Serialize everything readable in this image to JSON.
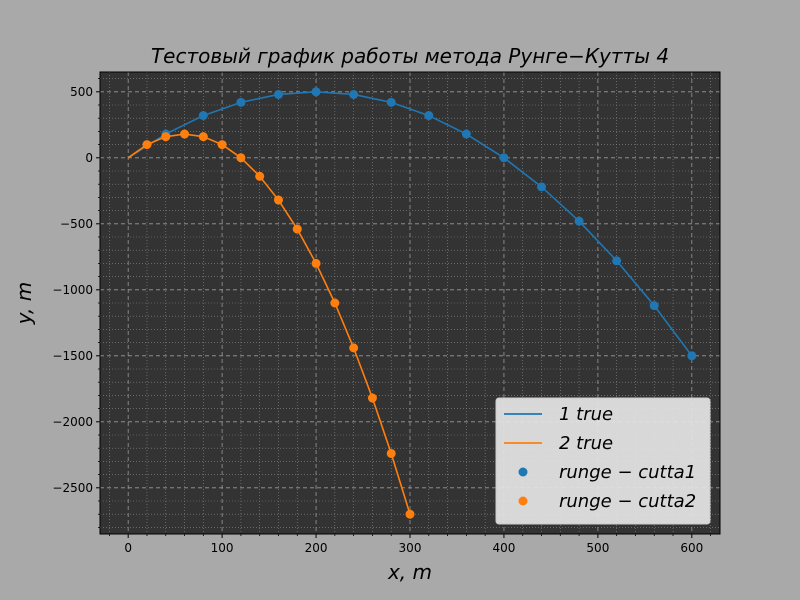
{
  "chart_data": {
    "type": "line",
    "title": "Тестовый график работы метода Рунге−Кутты 4",
    "xlabel": "x, m",
    "ylabel": "y, m",
    "xlim": [
      -30,
      630
    ],
    "ylim": [
      -2850,
      650
    ],
    "x_ticks": [
      0,
      100,
      200,
      300,
      400,
      500,
      600
    ],
    "y_ticks": [
      500,
      0,
      -500,
      -1000,
      -1500,
      -2000,
      -2500
    ],
    "grid": true,
    "legend_position": "bottom-right",
    "background_color": "#333333",
    "figure_color": "#a9a9a9",
    "series": [
      {
        "name": "1 true",
        "kind": "line",
        "color": "#1f77b4",
        "x": [
          0,
          40,
          80,
          120,
          160,
          200,
          240,
          280,
          320,
          360,
          400,
          440,
          480,
          520,
          560,
          600
        ],
        "y": [
          0,
          180,
          320,
          420,
          480,
          500,
          480,
          420,
          320,
          180,
          0,
          -220,
          -480,
          -780,
          -1120,
          -1500
        ]
      },
      {
        "name": "2 true",
        "kind": "line",
        "color": "#ff7f0e",
        "x": [
          0,
          20,
          40,
          60,
          80,
          100,
          120,
          140,
          160,
          180,
          200,
          220,
          240,
          260,
          280,
          300
        ],
        "y": [
          0,
          100,
          160,
          180,
          160,
          100,
          0,
          -140,
          -320,
          -540,
          -800,
          -1100,
          -1440,
          -1820,
          -2240,
          -2700
        ]
      },
      {
        "name": "runge − cutta1",
        "kind": "scatter",
        "color": "#1f77b4",
        "x": [
          40,
          80,
          120,
          160,
          200,
          240,
          280,
          320,
          360,
          400,
          440,
          480,
          520,
          560,
          600
        ],
        "y": [
          180,
          320,
          420,
          480,
          500,
          480,
          420,
          320,
          180,
          0,
          -220,
          -480,
          -780,
          -1120,
          -1500
        ]
      },
      {
        "name": "runge − cutta2",
        "kind": "scatter",
        "color": "#ff7f0e",
        "x": [
          20,
          40,
          60,
          80,
          100,
          120,
          140,
          160,
          180,
          200,
          220,
          240,
          260,
          280,
          300
        ],
        "y": [
          100,
          160,
          180,
          160,
          100,
          0,
          -140,
          -320,
          -540,
          -800,
          -1100,
          -1440,
          -1820,
          -2240,
          -2700
        ]
      }
    ]
  }
}
